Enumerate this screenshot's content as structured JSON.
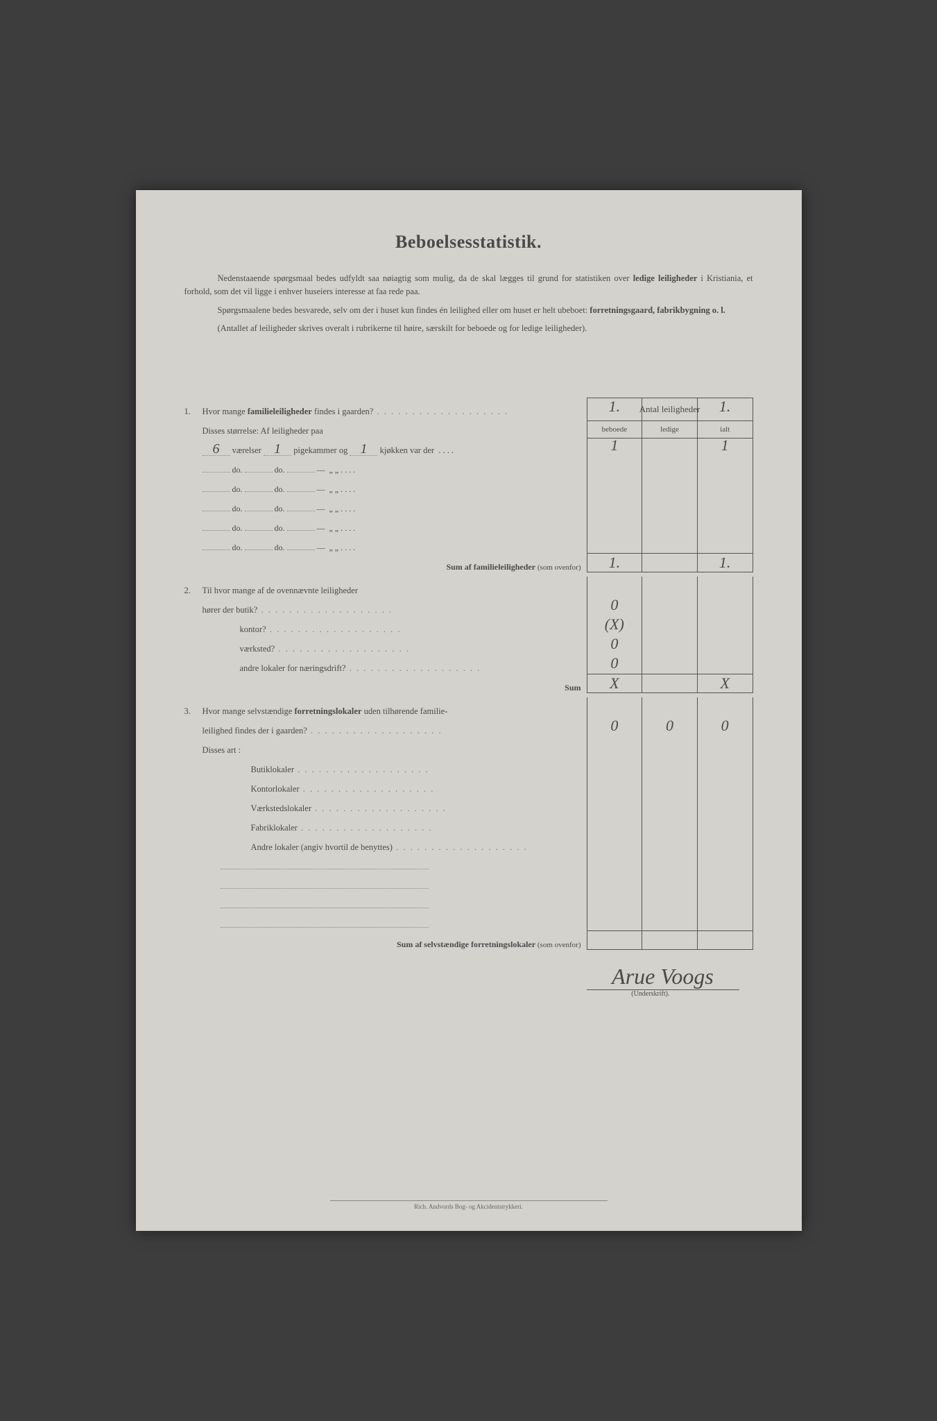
{
  "title": "Beboelsesstatistik.",
  "intro": {
    "p1a": "Nedenstaaende spørgsmaal bedes udfyldt saa nøiagtig som mulig, da de skal lægges til grund for statistiken over ",
    "p1b": "ledige leiligheder",
    "p1c": " i Kristiania, et forhold, som det vil ligge i enhver huseiers interesse at faa rede paa.",
    "p2a": "Spørgsmaalene bedes besvarede, selv om der i huset kun findes én leilighed eller om huset er helt ubeboet: ",
    "p2b": "forretningsgaard, fabrikbygning o. l.",
    "p3": "(Antallet af leiligheder skrives overalt i rubrikerne til høire, særskilt for beboede og for ledige leiligheder)."
  },
  "headers": {
    "main": "Antal leiligheder",
    "col1": "beboede",
    "col2": "ledige",
    "col3": "ialt"
  },
  "q1": {
    "num": "1.",
    "text_a": "Hvor mange ",
    "text_b": "familieleiligheder",
    "text_c": " findes i gaarden?",
    "beboede": "1.",
    "ledige": "",
    "ialt": "1.",
    "sub": "Disses størrelse:  Af leiligheder paa",
    "row1": {
      "vaer": "6",
      "pige": "1",
      "kjok": "1",
      "b": "1",
      "l": "",
      "i": "1"
    },
    "do_label": "do.",
    "line_parts": {
      "vaer": "værelser",
      "pige": "pigekammer og",
      "kjok": "kjøkken var der"
    },
    "sum_label": "Sum af familieleiligheder",
    "sum_note": "(som ovenfor)",
    "sum": {
      "b": "1.",
      "l": "",
      "i": "1."
    }
  },
  "q2": {
    "num": "2.",
    "text": "Til hvor mange af de ovennævnte leiligheder",
    "rows": [
      {
        "label": "hører der butik?",
        "b": "0",
        "l": "",
        "i": ""
      },
      {
        "label": "kontor?",
        "b": "(X)",
        "l": "",
        "i": ""
      },
      {
        "label": "værksted?",
        "b": "0",
        "l": "",
        "i": ""
      },
      {
        "label": "andre lokaler for næringsdrift?",
        "b": "0",
        "l": "",
        "i": ""
      }
    ],
    "sum_label": "Sum",
    "sum": {
      "b": "X",
      "l": "",
      "i": "X"
    }
  },
  "q3": {
    "num": "3.",
    "text_a": "Hvor mange selvstændige ",
    "text_b": "forretningslokaler",
    "text_c": " uden tilhørende familie-",
    "text_d": "leilighed findes der i gaarden?",
    "vals": {
      "b": "0",
      "l": "0",
      "i": "0"
    },
    "sub": "Disses art :",
    "rows": [
      "Butiklokaler",
      "Kontorlokaler",
      "Værkstedslokaler",
      "Fabriklokaler",
      "Andre lokaler (angiv hvortil de benyttes)"
    ],
    "sum_label": "Sum af selvstændige forretningslokaler",
    "sum_note": "(som ovenfor)"
  },
  "signature": "Arue Voogs",
  "sig_label": "(Underskrift).",
  "footer": "Rich. Andvords Bog- og Akcidentstrykkeri.",
  "colors": {
    "page_bg": "#d4d2cc",
    "outer_bg": "#3d3d3d",
    "text": "#4a4a4a",
    "line": "#555"
  }
}
